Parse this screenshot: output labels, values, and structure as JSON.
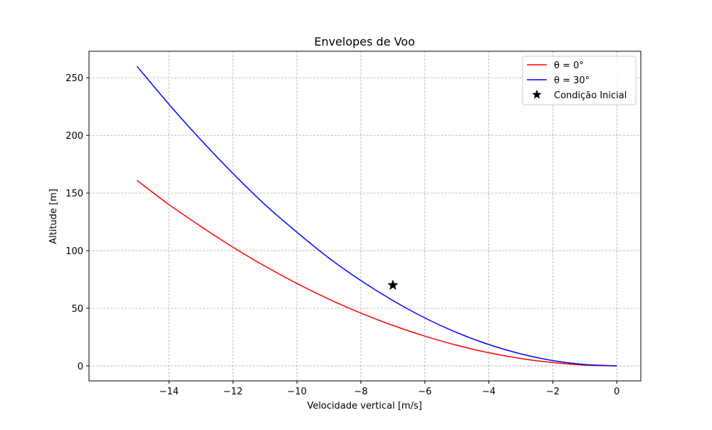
{
  "chart_data": {
    "type": "line",
    "title": "Envelopes de Voo",
    "xlabel": "Velocidade vertical [m/s]",
    "ylabel": "Altitude [m]",
    "xlim": [
      -16.5,
      0.75
    ],
    "ylim": [
      -13,
      273
    ],
    "xticks": [
      -14,
      -12,
      -10,
      -8,
      -6,
      -4,
      -2,
      0
    ],
    "xtick_labels": [
      "−14",
      "−12",
      "−10",
      "−8",
      "−6",
      "−4",
      "−2",
      "0"
    ],
    "yticks": [
      0,
      50,
      100,
      150,
      200,
      250
    ],
    "ytick_labels": [
      "0",
      "50",
      "100",
      "150",
      "200",
      "250"
    ],
    "grid": true,
    "legend_position": "top-right",
    "series": [
      {
        "name": "θ = 0°",
        "color": "#ff0000",
        "x": [
          -15,
          -14,
          -13,
          -12,
          -11,
          -10,
          -9,
          -8,
          -7,
          -6,
          -5,
          -4,
          -3,
          -2,
          -1,
          0
        ],
        "y": [
          161,
          140,
          121,
          103,
          86.6,
          71.5,
          57.9,
          45.8,
          35.1,
          25.8,
          17.9,
          11.4,
          6.4,
          2.9,
          0.7,
          0
        ]
      },
      {
        "name": "θ = 30°",
        "color": "#0000ff",
        "x": [
          -15,
          -14,
          -13,
          -12,
          -11,
          -10,
          -9,
          -8,
          -7,
          -6,
          -5,
          -4,
          -3,
          -2,
          -1,
          0
        ],
        "y": [
          260,
          227,
          196,
          167,
          140,
          116,
          93.6,
          74,
          56.7,
          41.6,
          28.9,
          18.5,
          10.4,
          4.6,
          1.2,
          0
        ]
      }
    ],
    "markers": [
      {
        "name": "Condição Inicial",
        "marker": "star",
        "color": "#000000",
        "x": -7,
        "y": 70
      }
    ]
  }
}
